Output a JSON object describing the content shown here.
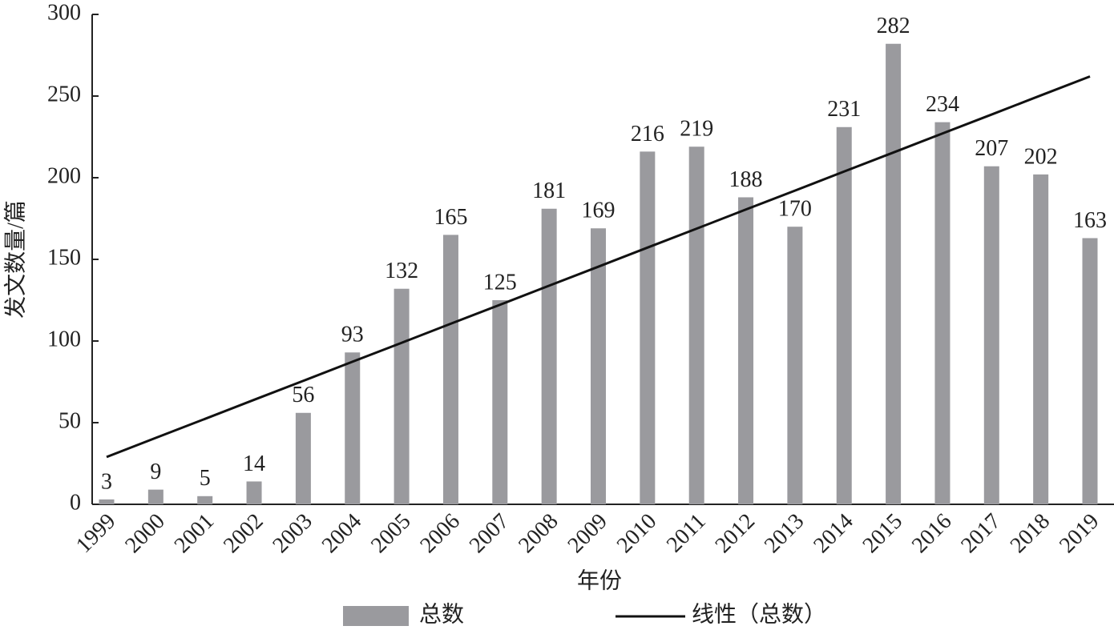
{
  "chart_data": {
    "type": "bar",
    "y_label": "发文数量/篇",
    "x_label": "年份",
    "categories": [
      "1999",
      "2000",
      "2001",
      "2002",
      "2003",
      "2004",
      "2005",
      "2006",
      "2007",
      "2008",
      "2009",
      "2010",
      "2011",
      "2012",
      "2013",
      "2014",
      "2015",
      "2016",
      "2017",
      "2018",
      "2019"
    ],
    "series": [
      {
        "name": "总数",
        "type": "bar",
        "color": "#9a9a9e",
        "values": [
          3,
          9,
          5,
          14,
          56,
          93,
          132,
          165,
          125,
          181,
          169,
          216,
          219,
          188,
          170,
          231,
          282,
          234,
          207,
          202,
          163
        ]
      },
      {
        "name": "线性（总数）",
        "type": "line",
        "color": "#111111",
        "values": [
          29,
          40.7,
          52.3,
          64,
          75.6,
          87.3,
          98.9,
          110.6,
          122.2,
          133.9,
          145.5,
          157.2,
          168.8,
          180.5,
          192.1,
          203.8,
          215.4,
          227.1,
          238.7,
          250.4,
          262
        ]
      }
    ],
    "ylim": [
      0,
      300
    ],
    "yticks": [
      0,
      50,
      100,
      150,
      200,
      250,
      300
    ],
    "grid": false,
    "legend": "bottom"
  }
}
